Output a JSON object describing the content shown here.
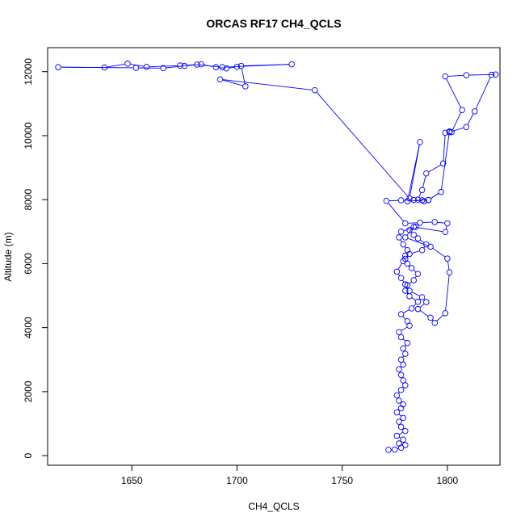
{
  "chart_data": {
    "type": "line",
    "title": "ORCAS RF17 CH4_QCLS",
    "xlabel": "CH4_QCLS",
    "ylabel": "Altitude (m)",
    "xlim": [
      1610,
      1825
    ],
    "ylim": [
      -300,
      12750
    ],
    "x_ticks": [
      1650,
      1700,
      1750,
      1800
    ],
    "y_ticks": [
      0,
      2000,
      4000,
      6000,
      8000,
      10000,
      12000
    ],
    "grid": false,
    "legend": "none",
    "series_color": "#0000ff",
    "series": [
      {
        "x": [
          1772,
          1775,
          1778,
          1780,
          1777,
          1779,
          1776,
          1780,
          1778,
          1777,
          1779,
          1776,
          1778,
          1779,
          1777,
          1776,
          1778,
          1780,
          1779,
          1778,
          1777,
          1779,
          1778,
          1780,
          1779,
          1781,
          1778,
          1777,
          1782,
          1781,
          1778,
          1783,
          1786,
          1782,
          1780,
          1781,
          1784,
          1786,
          1783,
          1781,
          1780,
          1782,
          1788,
          1790,
          1786,
          1784,
          1782,
          1785,
          1778,
          1777,
          1779,
          1781,
          1780,
          1779,
          1776,
          1778,
          1780,
          1782,
          1788,
          1790,
          1786,
          1792,
          1794,
          1799,
          1801,
          1800,
          1792,
          1780,
          1784,
          1799,
          1800,
          1794,
          1787,
          1780,
          1771,
          1778,
          1784,
          1789,
          1791,
          1786,
          1788,
          1790,
          1798,
          1799,
          1801,
          1809,
          1813,
          1821,
          1823,
          1809,
          1799,
          1807,
          1802,
          1801,
          1797,
          1791,
          1788,
          1781,
          1787,
          1782,
          1737,
          1692,
          1704,
          1702,
          1726,
          1693,
          1681,
          1673,
          1657,
          1648,
          1637,
          1615,
          1652,
          1665,
          1675,
          1683,
          1690,
          1695,
          1700
        ],
        "y": [
          180,
          190,
          250,
          330,
          380,
          500,
          620,
          770,
          900,
          1060,
          1180,
          1350,
          1480,
          1600,
          1720,
          1880,
          2050,
          2200,
          2350,
          2520,
          2700,
          2850,
          3000,
          3180,
          3350,
          3520,
          3700,
          3860,
          4060,
          4200,
          4420,
          4600,
          4810,
          4980,
          5150,
          5330,
          5480,
          5680,
          5860,
          6000,
          6150,
          6300,
          6420,
          6600,
          6790,
          6900,
          7050,
          7150,
          7000,
          6820,
          6600,
          6420,
          6250,
          6080,
          5750,
          5550,
          5350,
          5150,
          4950,
          4800,
          4580,
          4310,
          4150,
          4450,
          5730,
          6160,
          6530,
          6820,
          7150,
          6990,
          7260,
          7300,
          7280,
          7260,
          7960,
          7980,
          7990,
          7950,
          7990,
          8000,
          8300,
          8820,
          9130,
          10090,
          10110,
          10270,
          10760,
          11900,
          11910,
          11890,
          11850,
          10800,
          10110,
          10130,
          8240,
          7990,
          7980,
          7950,
          9800,
          8040,
          11420,
          11760,
          11540,
          12180,
          12230,
          12140,
          12220,
          12190,
          12150,
          12250,
          12130,
          12140,
          12120,
          12110,
          12180,
          12230,
          12140,
          12100,
          12150
        ]
      }
    ]
  }
}
